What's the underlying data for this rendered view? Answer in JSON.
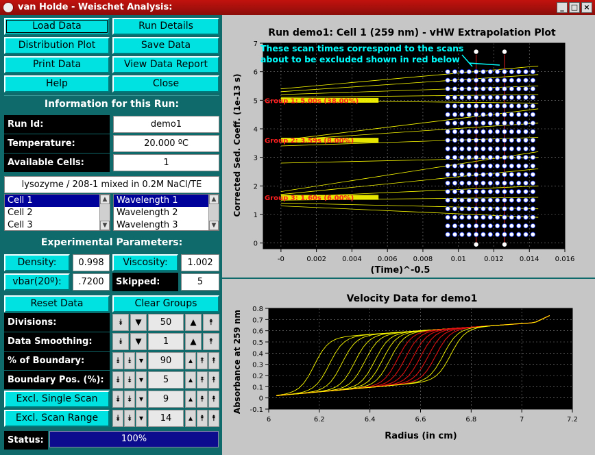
{
  "window": {
    "title": "van Holde - Weischet Analysis:"
  },
  "buttons": {
    "load_data": "Load Data",
    "run_details": "Run Details",
    "distribution_plot": "Distribution Plot",
    "save_data": "Save Data",
    "print_data": "Print Data",
    "view_data_report": "View Data Report",
    "help": "Help",
    "close": "Close",
    "reset_data": "Reset Data",
    "clear_groups": "Clear Groups",
    "density": "Density:",
    "viscosity": "Viscosity:",
    "vbar": "vbar(20º):",
    "excl_single_scan": "Excl. Single Scan",
    "excl_scan_range": "Excl. Scan Range"
  },
  "run_info": {
    "header": "Information for this Run:",
    "run_id_label": "Run Id:",
    "run_id": "demo1",
    "temperature_label": "Temperature:",
    "temperature": "20.000 ºC",
    "cells_label": "Available Cells:",
    "cells": "1",
    "description": "lysozyme / 208-1 mixed in 0.2M NaCl/TE",
    "cell_list": [
      "Cell 1",
      "Cell 2",
      "Cell 3"
    ],
    "wavelength_list": [
      "Wavelength 1",
      "Wavelength 2",
      "Wavelength 3"
    ]
  },
  "exp_params": {
    "header": "Experimental Parameters:",
    "density": "0.998",
    "viscosity": "1.002",
    "vbar": ".7200",
    "skipped_label": "Skipped:",
    "skipped": "5",
    "divisions_label": "Divisions:",
    "divisions": "50",
    "smoothing_label": "Data Smoothing:",
    "smoothing": "1",
    "boundary_label": "% of Boundary:",
    "boundary": "90",
    "boundary_pos_label": "Boundary Pos. (%):",
    "boundary_pos": "5",
    "single_scan": "9",
    "scan_range": "14"
  },
  "status": {
    "label": "Status:",
    "value": "100%"
  },
  "colors": {
    "teal": "#0f6b6b",
    "cyan": "#00e2e2",
    "yellow": "#ffff00",
    "red_text": "#ff2020",
    "annotation": "#00ffff"
  },
  "chart_data": [
    {
      "type": "scatter",
      "title": "Run demo1: Cell 1 (259 nm) - vHW Extrapolation Plot",
      "xlabel": "(Time)^-0.5",
      "ylabel": "Corrected Sed. Coeff. (1e-13 s)",
      "xlim": [
        -0.001,
        0.016
      ],
      "ylim": [
        -0.2,
        7
      ],
      "xticks": [
        "-0",
        "0.002",
        "0.004",
        "0.006",
        "0.008",
        "0.01",
        "0.012",
        "0.014",
        "0.016"
      ],
      "yticks": [
        "0",
        "1",
        "2",
        "3",
        "4",
        "5",
        "6",
        "7"
      ],
      "scan_x": [
        0.0094,
        0.0098,
        0.0102,
        0.0106,
        0.011,
        0.0114,
        0.0118,
        0.0122,
        0.0126,
        0.013,
        0.0134,
        0.0138,
        0.0142
      ],
      "excluded_scan_x": [
        0.011,
        0.0126
      ],
      "y_points": [
        0.3,
        0.6,
        0.9,
        1.2,
        1.5,
        1.8,
        2.1,
        2.4,
        2.7,
        3.0,
        3.3,
        3.6,
        3.9,
        4.2,
        4.5,
        4.8,
        5.1,
        5.4,
        5.7,
        6.0
      ],
      "extrapolation_lines": [
        [
          1.3,
          0.9
        ],
        [
          1.4,
          1.2
        ],
        [
          1.5,
          1.6
        ],
        [
          1.6,
          2.0
        ],
        [
          1.7,
          2.6
        ],
        [
          1.8,
          3.2
        ],
        [
          2.8,
          3.0
        ],
        [
          3.4,
          3.7
        ],
        [
          3.6,
          4.2
        ],
        [
          3.6,
          4.7
        ],
        [
          5.0,
          4.9
        ],
        [
          5.1,
          5.2
        ],
        [
          5.2,
          5.5
        ],
        [
          5.3,
          5.9
        ],
        [
          5.4,
          6.2
        ]
      ],
      "groups": [
        {
          "label": "Group 1:  5.00s (38.00%)",
          "y": 5.0
        },
        {
          "label": "Group 2:  3.59s (8.00%)",
          "y": 3.6
        },
        {
          "label": "Group 3:  1.60s (6.00%)",
          "y": 1.6
        }
      ],
      "annotation": "These scan times correspond to the scans about to be excluded shown in red below"
    },
    {
      "type": "line",
      "title": "Velocity Data for demo1",
      "xlabel": "Radius (in cm)",
      "ylabel": "Absorbance at 259 nm",
      "xlim": [
        6.0,
        7.2
      ],
      "ylim": [
        -0.1,
        0.8
      ],
      "xticks": [
        "6",
        "6.2",
        "6.4",
        "6.6",
        "6.8",
        "7",
        "7.2"
      ],
      "yticks": [
        "-0.1",
        "0",
        "0.1",
        "0.2",
        "0.3",
        "0.4",
        "0.5",
        "0.6",
        "0.7",
        "0.8"
      ],
      "boundary_midpoints": [
        6.18,
        6.24,
        6.29,
        6.34,
        6.38,
        6.42,
        6.45,
        6.48,
        6.51,
        6.54,
        6.57,
        6.6,
        6.63,
        6.66,
        6.69,
        6.72
      ],
      "excluded_scans": [
        8,
        9,
        10,
        11,
        12,
        13
      ]
    }
  ]
}
